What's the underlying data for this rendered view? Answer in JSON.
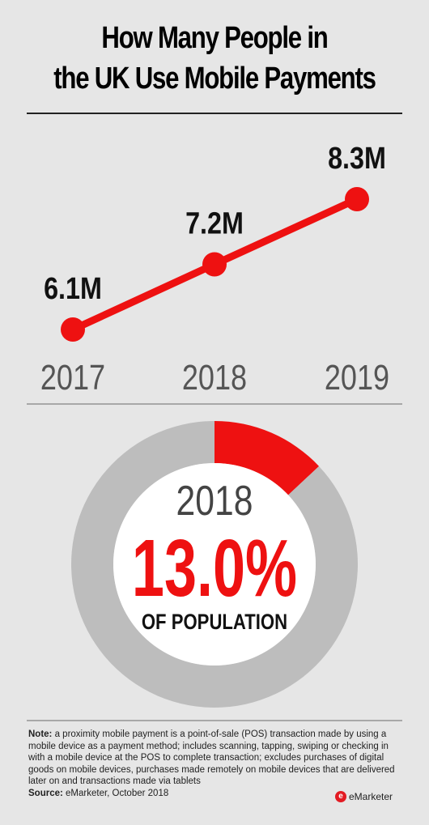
{
  "title_lines": [
    "How Many People in",
    "the UK Use Mobile Payments"
  ],
  "chart_data": [
    {
      "type": "line",
      "title": "How Many People in the UK Use Mobile Payments",
      "x": [
        "2017",
        "2018",
        "2019"
      ],
      "values": [
        6.1,
        7.2,
        8.3
      ],
      "value_labels": [
        "6.1M",
        "7.2M",
        "8.3M"
      ],
      "unit": "M",
      "color": "#ee1111",
      "grid": false
    },
    {
      "type": "pie",
      "style": "donut",
      "year_label": "2018",
      "values": [
        13.0,
        87.0
      ],
      "value_label": "13.0%",
      "subtitle": "OF POPULATION",
      "colors": [
        "#ee1111",
        "#bdbdbd"
      ]
    }
  ],
  "note": {
    "label": "Note:",
    "text": " a proximity mobile payment is a point-of-sale (POS) transaction made by using a mobile device as a payment method; includes scanning, tapping, swiping or checking in with a mobile device at the POS to complete transaction; excludes purchases of digital goods on mobile devices, purchases made remotely on mobile devices that are delivered later on and transactions made via tablets",
    "source_label": "Source:",
    "source_text": " eMarketer, October 2018"
  },
  "brand": {
    "logo_letter": "e",
    "name": "eMarketer"
  }
}
